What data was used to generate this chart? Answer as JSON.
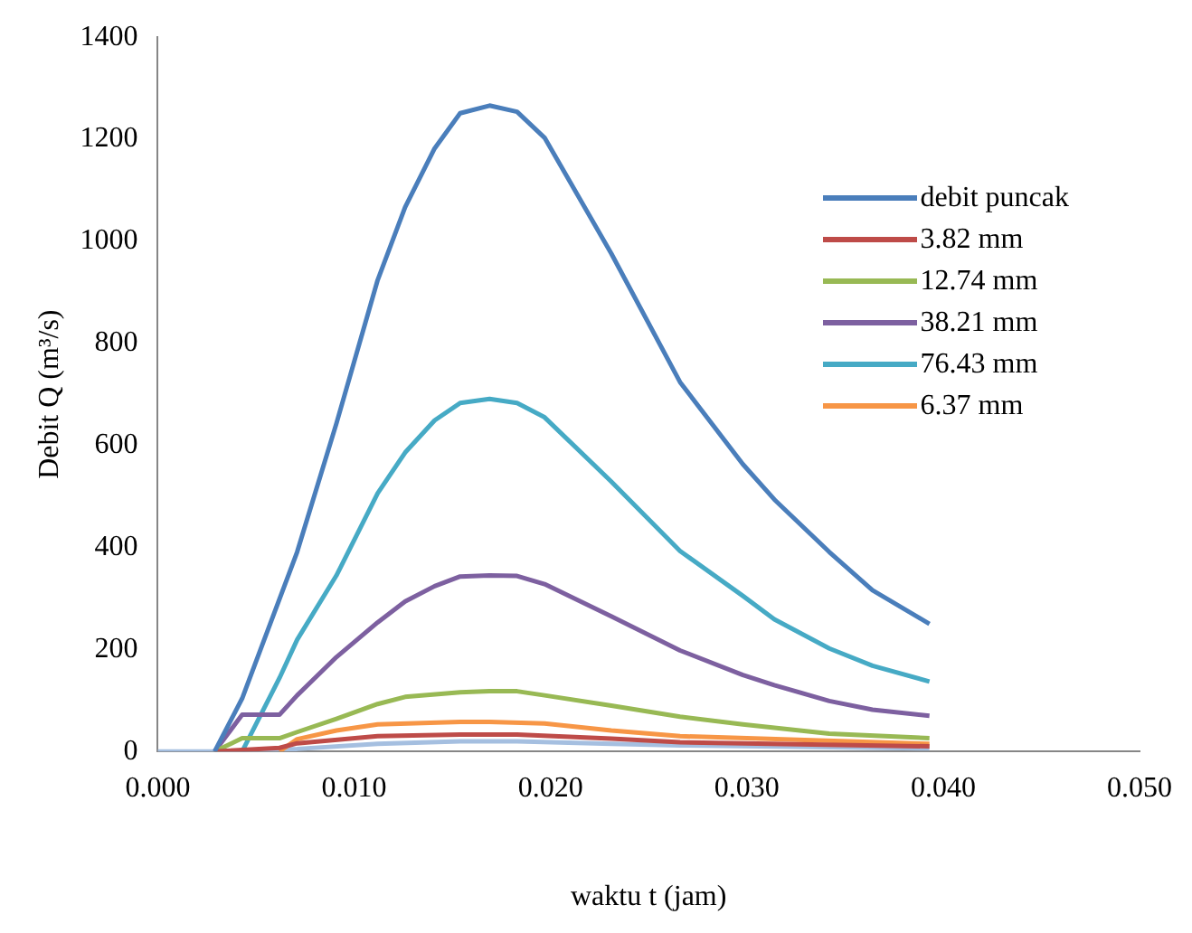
{
  "chart_data": {
    "type": "line",
    "xlabel": "waktu t (jam)",
    "ylabel": "Debit Q (m³/s)",
    "xlim": [
      0,
      0.05
    ],
    "xticks": [
      {
        "value": 0,
        "label": "0.000"
      },
      {
        "value": 0.01,
        "label": "0.010"
      },
      {
        "value": 0.02,
        "label": "0.020"
      },
      {
        "value": 0.03,
        "label": "0.030"
      },
      {
        "value": 0.04,
        "label": "0.040"
      },
      {
        "value": 0.05,
        "label": "0.050"
      }
    ],
    "ylim": [
      0,
      1400
    ],
    "yticks": [
      0,
      200,
      400,
      600,
      800,
      1000,
      1200,
      1400
    ],
    "grid": false,
    "legend": "right",
    "marker": "none",
    "line_style": "solid",
    "series": [
      {
        "name": "debit puncak",
        "color": "#4a7ebb",
        "x": [
          0.0029,
          0.0043,
          0.0071,
          0.0091,
          0.0112,
          0.0126,
          0.0141,
          0.0154,
          0.0169,
          0.0183,
          0.0197,
          0.0231,
          0.0266,
          0.0298,
          0.0314,
          0.0342,
          0.0364,
          0.0393
        ],
        "values": [
          0,
          104,
          391,
          643,
          924,
          1067,
          1182,
          1251,
          1266,
          1254,
          1203,
          976,
          724,
          563,
          494,
          391,
          316,
          250
        ]
      },
      {
        "name": "3.82 mm",
        "color": "#be4b48",
        "x": [
          0.0029,
          0.0062,
          0.0071,
          0.0112,
          0.0154,
          0.0183,
          0.0231,
          0.0266,
          0.0393
        ],
        "values": [
          0,
          7,
          16,
          30,
          33,
          33,
          25,
          18,
          10
        ]
      },
      {
        "name": "12.74 mm",
        "color": "#98b954",
        "x": [
          0.0029,
          0.0043,
          0.0062,
          0.0071,
          0.0091,
          0.0112,
          0.0126,
          0.0154,
          0.0169,
          0.0183,
          0.0197,
          0.0231,
          0.0266,
          0.0298,
          0.0342,
          0.0393
        ],
        "values": [
          0,
          26,
          26,
          38,
          64,
          93,
          107,
          116,
          118,
          118,
          110,
          90,
          68,
          53,
          35,
          26
        ]
      },
      {
        "name": "38.21 mm",
        "color": "#7d60a0",
        "x": [
          0.0029,
          0.0043,
          0.0062,
          0.0071,
          0.0091,
          0.0112,
          0.0126,
          0.0141,
          0.0154,
          0.0169,
          0.0183,
          0.0197,
          0.0231,
          0.0266,
          0.0298,
          0.0314,
          0.0342,
          0.0364,
          0.0393
        ],
        "values": [
          0,
          72,
          72,
          110,
          185,
          253,
          294,
          324,
          343,
          345,
          344,
          328,
          265,
          198,
          150,
          130,
          99,
          82,
          70
        ]
      },
      {
        "name": "76.43 mm",
        "color": "#46aac5",
        "x": [
          0.0043,
          0.0062,
          0.0071,
          0.0091,
          0.0112,
          0.0126,
          0.0141,
          0.0154,
          0.0169,
          0.0183,
          0.0197,
          0.0231,
          0.0266,
          0.0298,
          0.0314,
          0.0342,
          0.0364,
          0.0393
        ],
        "values": [
          0,
          144,
          219,
          345,
          506,
          586,
          649,
          683,
          691,
          683,
          655,
          529,
          393,
          305,
          259,
          202,
          168,
          137
        ]
      },
      {
        "name": "6.37 mm",
        "color": "#f79646",
        "x": [
          0.0062,
          0.0071,
          0.0091,
          0.0112,
          0.0154,
          0.0169,
          0.0197,
          0.0231,
          0.0266,
          0.0393
        ],
        "values": [
          0,
          24,
          41,
          53,
          58,
          58,
          55,
          41,
          30,
          15
        ]
      },
      {
        "color": "#a5bfe0",
        "x": [
          0,
          0.0029,
          0.0071,
          0.0112,
          0.0154,
          0.0183,
          0.0231,
          0.0266,
          0.0393
        ],
        "values": [
          0,
          0,
          5,
          15,
          20,
          20,
          15,
          12,
          6
        ]
      }
    ]
  }
}
